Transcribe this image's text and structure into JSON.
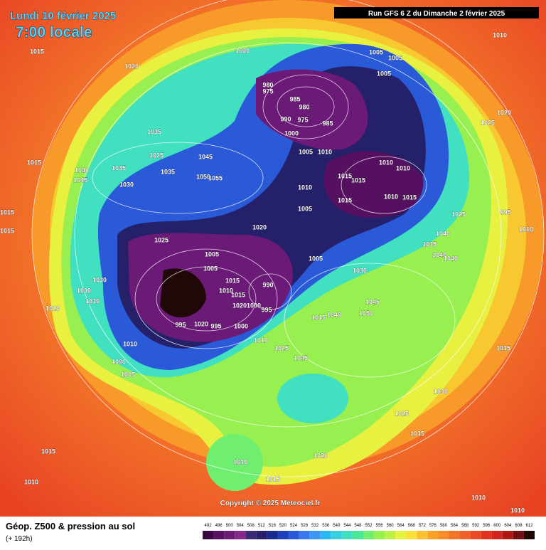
{
  "header": {
    "date": "Lundi 10 février 2025",
    "time": "7:00 locale",
    "run": "Run GFS 6 Z du Dimanche 2 février 2025"
  },
  "copyright": "Copyright © 2025 Meteociel.fr",
  "footer": {
    "title": "Géop. Z500 & pression au sol",
    "lead": "(+ 192h)"
  },
  "scale": {
    "labels": [
      492,
      496,
      500,
      504,
      508,
      512,
      516,
      520,
      524,
      528,
      532,
      536,
      540,
      544,
      548,
      552,
      556,
      560,
      564,
      568,
      572,
      576,
      580,
      584,
      588,
      592,
      596,
      600,
      604,
      608,
      612
    ],
    "colors": [
      "#3a0845",
      "#55105f",
      "#6c1a78",
      "#84288c",
      "#3a2a78",
      "#24206a",
      "#1a2a90",
      "#1e40b8",
      "#2a5ad8",
      "#3a78ee",
      "#3c98f4",
      "#30b8f0",
      "#3ad0e0",
      "#40e0c0",
      "#48e898",
      "#70ee70",
      "#98f050",
      "#c0f048",
      "#e8f040",
      "#f8e038",
      "#f8c030",
      "#f8a028",
      "#f88c28",
      "#f47428",
      "#f06028",
      "#ea4a24",
      "#e03420",
      "#d0241c",
      "#b01818",
      "#701010",
      "#200808"
    ]
  },
  "isobars": [
    1015,
    1020,
    1000,
    1005,
    1005,
    1005,
    1010,
    980,
    975,
    985,
    980,
    990,
    975,
    985,
    1000,
    1020,
    1025,
    1035,
    1005,
    1010,
    1025,
    1045,
    1015,
    1035,
    1040,
    1035,
    1045,
    1030,
    1050,
    1055,
    1010,
    1010,
    1015,
    1015,
    1010,
    1005,
    1015,
    1010,
    1015,
    1025,
    995,
    1015,
    1015,
    1020,
    1025,
    1040,
    1035,
    1005,
    1005,
    1040,
    1040,
    1005,
    1030,
    1015,
    990,
    1030,
    1010,
    1015,
    1030,
    1030,
    1045,
    1020,
    1000,
    995,
    1020,
    1050,
    1040,
    1015,
    995,
    1020,
    995,
    1000,
    1010,
    1025,
    1010,
    1015,
    1045,
    1000,
    1005,
    1030,
    1025,
    1015,
    1015,
    1020,
    1010,
    1010,
    1015,
    1010,
    1010,
    1010
  ]
}
